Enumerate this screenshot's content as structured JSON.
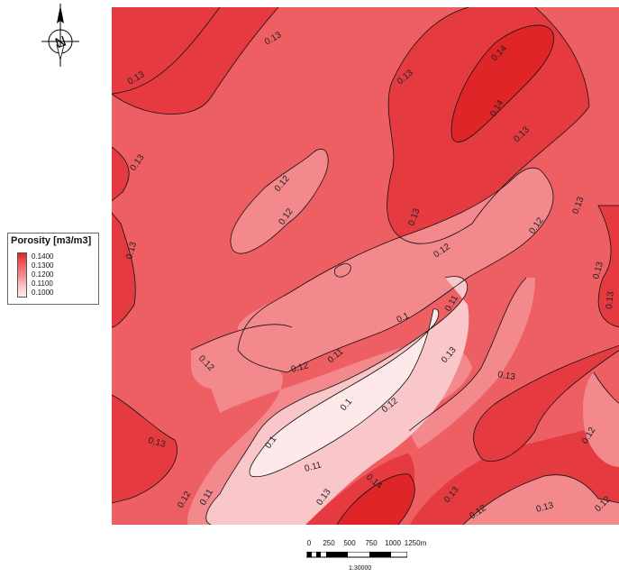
{
  "map": {
    "colors": {
      "c010": "#fde9ea",
      "c011": "#f9c7c9",
      "c012": "#f3888d",
      "c013": "#ee5f64",
      "c014": "#e53b40",
      "c015": "#e02529"
    },
    "contour_labels": [
      "0.1",
      "0.11",
      "0.12",
      "0.13",
      "0.14"
    ]
  },
  "legend": {
    "title": "Porosity [m3/m3]",
    "items": [
      "0.1400",
      "0.1300",
      "0.1200",
      "0.1100",
      "0.1000"
    ]
  },
  "scale_bar": {
    "labels": [
      "0",
      "250",
      "500",
      "750",
      "1000",
      "1250m"
    ],
    "ratio": "1:30000"
  },
  "north_arrow": {
    "letter": "N"
  }
}
